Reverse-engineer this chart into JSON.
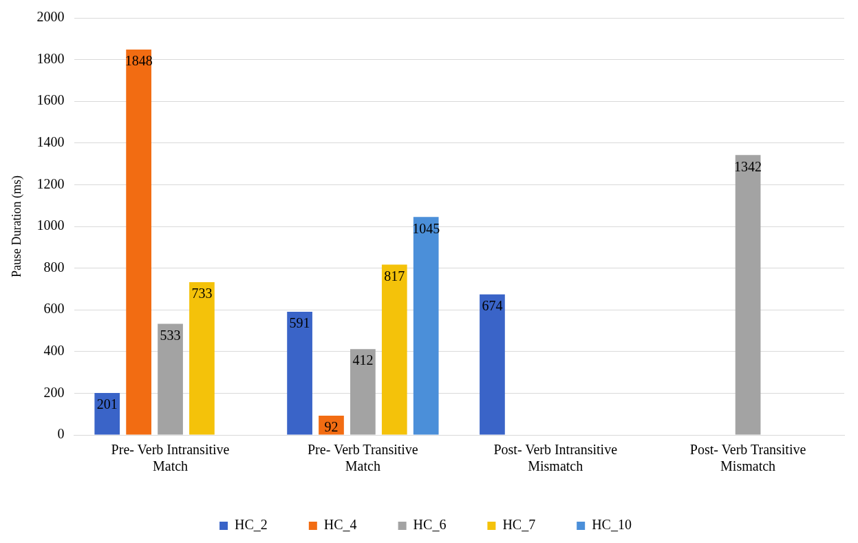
{
  "chart_data": {
    "type": "bar",
    "ylabel": "Pause Duration (ms)",
    "categories": [
      "Pre- Verb Intransitive Match",
      "Pre- Verb Transitive Match",
      "Post- Verb Intransitive Mismatch",
      "Post- Verb Transitive Mismatch"
    ],
    "series": [
      {
        "name": "HC_2",
        "color": "#3a64c8",
        "values": [
          201,
          591,
          674,
          null
        ]
      },
      {
        "name": "HC_4",
        "color": "#f26c12",
        "values": [
          1848,
          92,
          null,
          null
        ]
      },
      {
        "name": "HC_6",
        "color": "#a3a3a3",
        "values": [
          533,
          412,
          null,
          1342
        ]
      },
      {
        "name": "HC_7",
        "color": "#f4c20a",
        "values": [
          733,
          817,
          null,
          null
        ]
      },
      {
        "name": "HC_10",
        "color": "#4b8fd9",
        "values": [
          null,
          1045,
          null,
          null
        ]
      }
    ],
    "ylim": [
      0,
      2000
    ],
    "yticks": [
      0,
      200,
      400,
      600,
      800,
      1000,
      1200,
      1400,
      1600,
      1800,
      2000
    ],
    "grid": "y",
    "legend": "bottom",
    "data_labels": true
  }
}
